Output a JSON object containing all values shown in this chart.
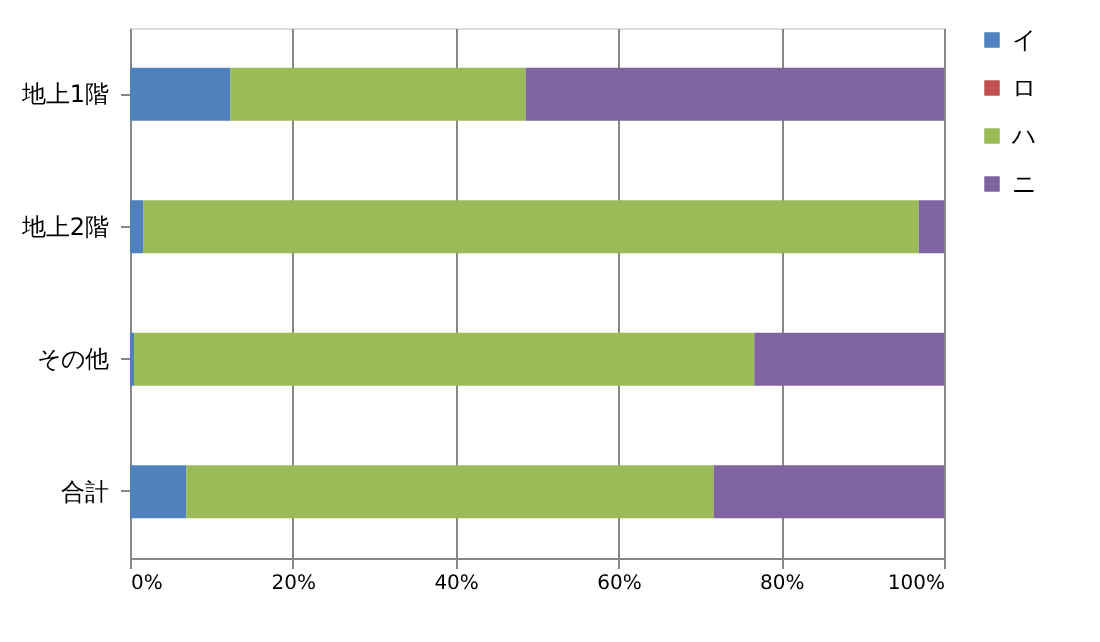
{
  "chart_data": {
    "type": "bar",
    "orientation": "horizontal",
    "stacked": true,
    "categories": [
      "地上1階",
      "地上2階",
      "その他",
      "合計"
    ],
    "series": [
      {
        "name": "イ",
        "color": "#4f81bd",
        "values": [
          12.3,
          1.6,
          0.5,
          6.9
        ]
      },
      {
        "name": "ロ",
        "color": "#c0504d",
        "values": [
          0,
          0,
          0,
          0
        ]
      },
      {
        "name": "ハ",
        "color": "#9bbb59",
        "values": [
          36.3,
          95.3,
          76.2,
          64.8
        ]
      },
      {
        "name": "ニ",
        "color": "#8064a2",
        "values": [
          51.4,
          3.1,
          23.3,
          28.3
        ]
      }
    ],
    "xlim": [
      0,
      100
    ],
    "xticks": [
      {
        "value": 0,
        "label": "0%"
      },
      {
        "value": 20,
        "label": "20%"
      },
      {
        "value": 40,
        "label": "40%"
      },
      {
        "value": 60,
        "label": "60%"
      },
      {
        "value": 80,
        "label": "80%"
      },
      {
        "value": 100,
        "label": "100%"
      }
    ],
    "grid": "x",
    "legend": "right"
  }
}
